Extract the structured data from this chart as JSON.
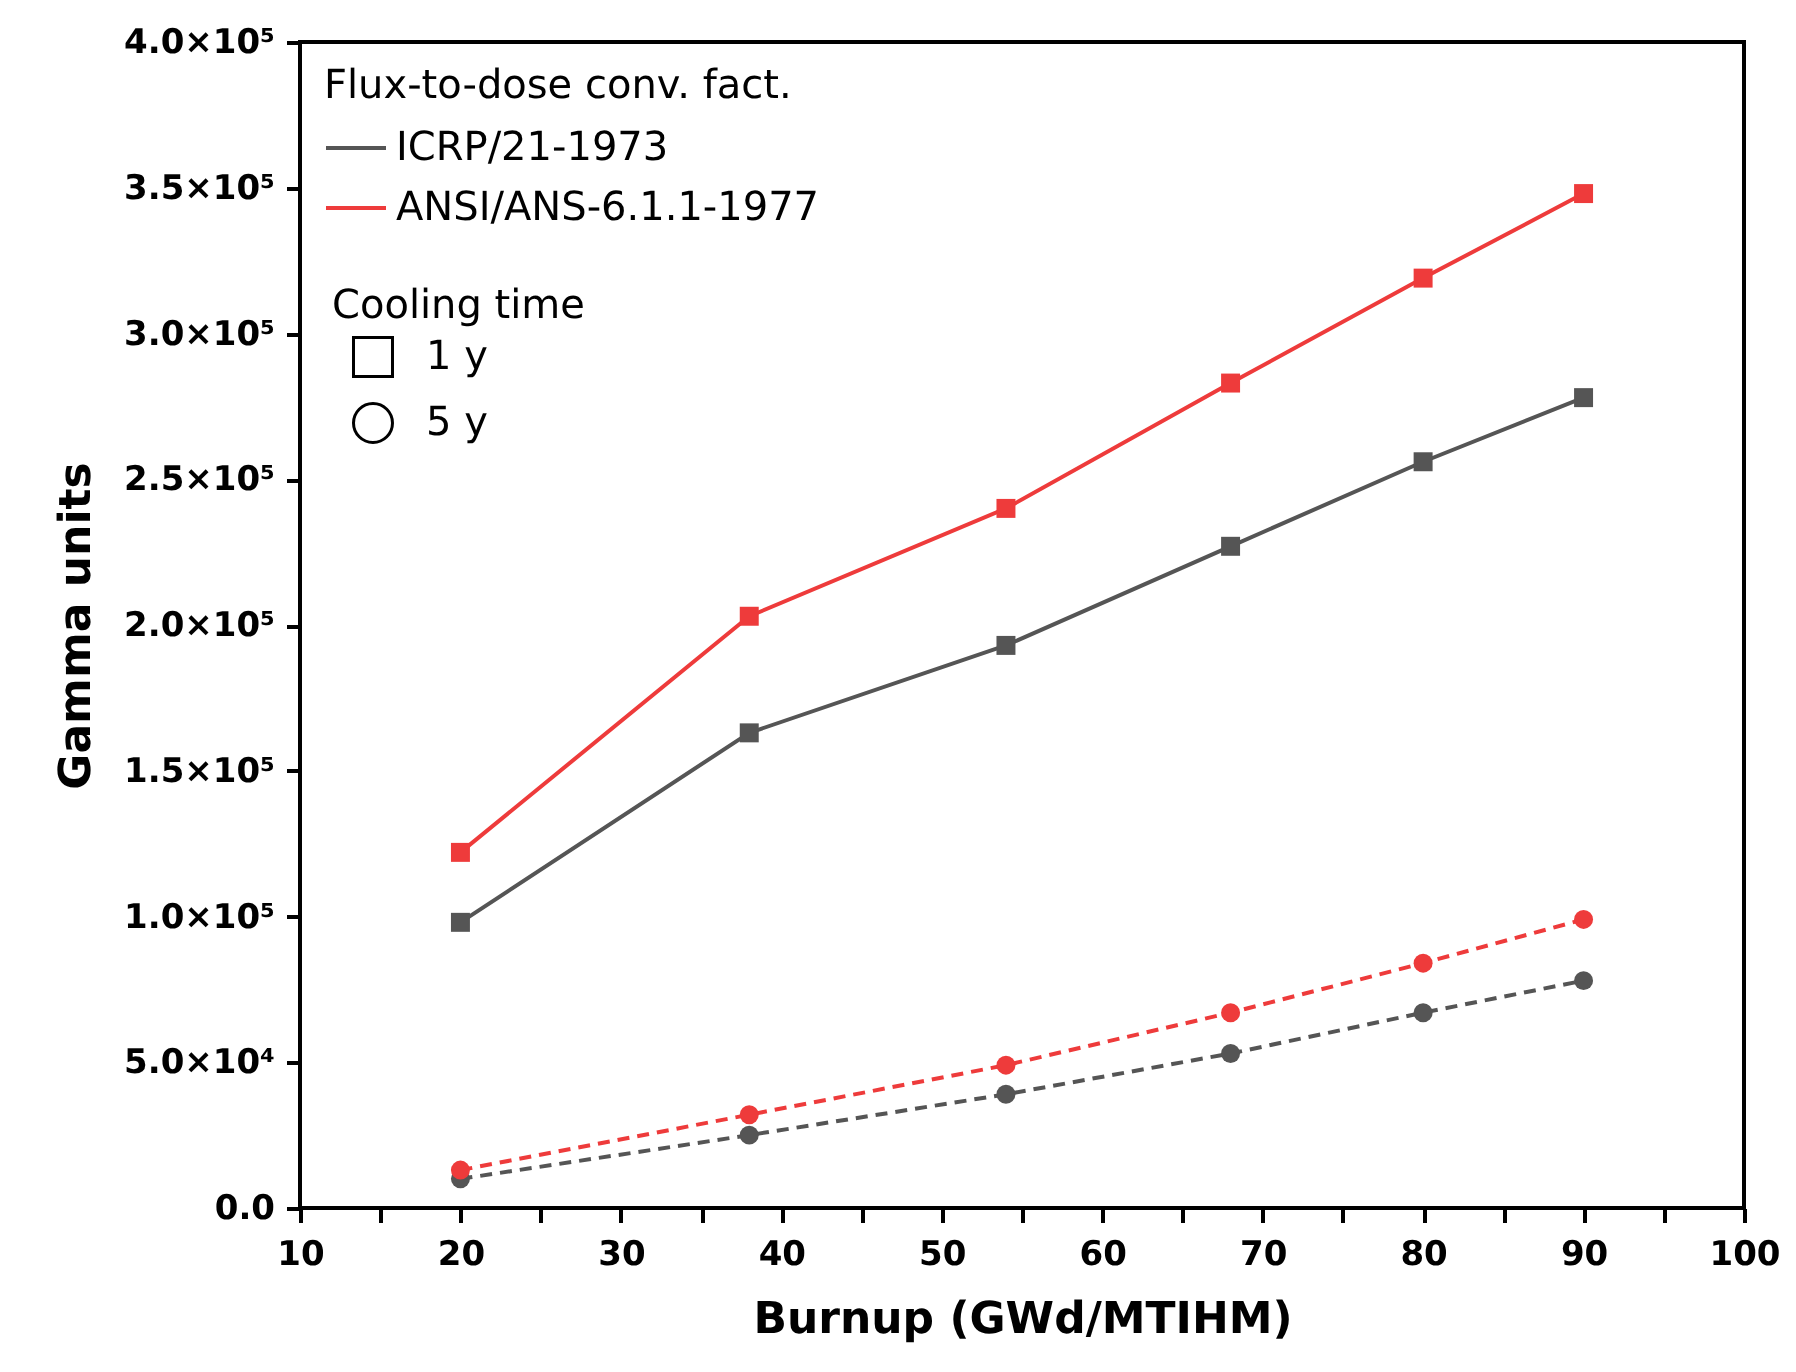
{
  "chart_data": {
    "type": "line",
    "xlabel": "Burnup (GWd/MTIHM)",
    "ylabel": "Gamma units",
    "legend_title": "Flux-to-dose conv. fact.",
    "x": [
      20,
      38,
      54,
      68,
      80,
      90
    ],
    "series": [
      {
        "name": "ICRP/21-1973",
        "color": "#555555",
        "marker": "square",
        "line_style": "solid",
        "values": [
          98000,
          163000,
          193000,
          227000,
          256000,
          278000
        ]
      },
      {
        "name": "ANSI/ANS-6.1.1-1977",
        "color": "#ee3b3b",
        "marker": "square",
        "line_style": "solid",
        "values": [
          122000,
          203000,
          240000,
          283000,
          319000,
          348000
        ]
      },
      {
        "color": "#555555",
        "marker": "circle",
        "line_style": "dashed",
        "values": [
          10000,
          25000,
          39000,
          53000,
          67000,
          78000
        ]
      },
      {
        "color": "#ee3b3b",
        "marker": "circle",
        "line_style": "dashed",
        "values": [
          13000,
          32000,
          49000,
          67000,
          84000,
          99000
        ]
      }
    ],
    "annotations": [
      "Cooling time",
      "1 y",
      "5 y"
    ],
    "xlim": [
      10,
      100
    ],
    "ylim": [
      0,
      400000
    ],
    "xticks": [
      10,
      {
        "value": 15,
        "label": null
      },
      20,
      {
        "value": 25,
        "label": null
      },
      30,
      {
        "value": 35,
        "label": null
      },
      40,
      {
        "value": 45,
        "label": null
      },
      50,
      {
        "value": 55,
        "label": null
      },
      60,
      {
        "value": 65,
        "label": null
      },
      70,
      {
        "value": 75,
        "label": null
      },
      80,
      {
        "value": 85,
        "label": null
      },
      90,
      {
        "value": 95,
        "label": null
      },
      100
    ],
    "yticks": [
      {
        "value": 0,
        "label": "0.0"
      },
      {
        "value": 50000,
        "label": "5.0×10⁴"
      },
      {
        "value": 100000,
        "label": "1.0×10⁵"
      },
      {
        "value": 150000,
        "label": "1.5×10⁵"
      },
      {
        "value": 200000,
        "label": "2.0×10⁵"
      },
      {
        "value": 250000,
        "label": "2.5×10⁵"
      },
      {
        "value": 300000,
        "label": "3.0×10⁵"
      },
      {
        "value": 350000,
        "label": "3.5×10⁵"
      },
      {
        "value": 400000,
        "label": "4.0×10⁵"
      }
    ],
    "grid": false,
    "legend": "top left"
  }
}
